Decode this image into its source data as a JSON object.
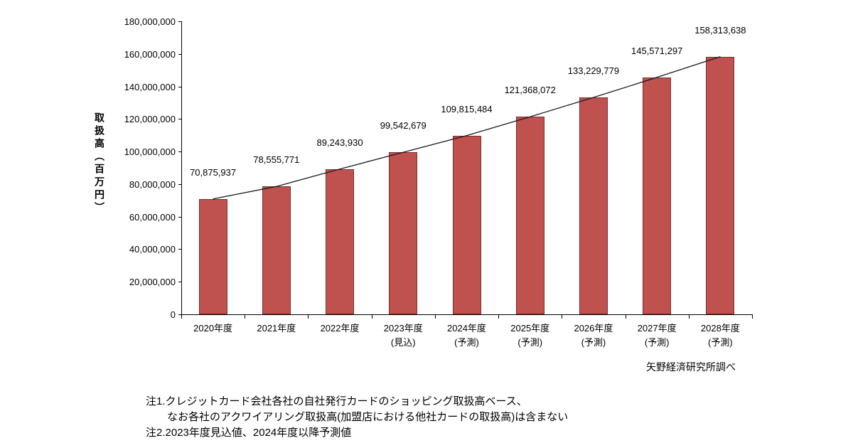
{
  "chart_data": {
    "type": "bar",
    "title": "",
    "ylabel": "取扱高（百万円）",
    "xlabel": "",
    "categories": [
      "2020年度",
      "2021年度",
      "2022年度",
      "2023年度",
      "2024年度",
      "2025年度",
      "2026年度",
      "2027年度",
      "2028年度"
    ],
    "category_sublabels": [
      "",
      "",
      "",
      "(見込)",
      "(予測)",
      "(予測)",
      "(予測)",
      "(予測)",
      "(予測)"
    ],
    "values": [
      70875937,
      78555771,
      89243930,
      99542679,
      109815484,
      121368072,
      133229779,
      145571297,
      158313638
    ],
    "value_labels": [
      "70,875,937",
      "78,555,771",
      "89,243,930",
      "99,542,679",
      "109,815,484",
      "121,368,072",
      "133,229,779",
      "145,571,297",
      "158,313,638"
    ],
    "ylim": [
      0,
      180000000
    ],
    "ytick_step": 20000000,
    "ytick_labels": [
      "0",
      "20,000,000",
      "40,000,000",
      "60,000,000",
      "80,000,000",
      "100,000,000",
      "120,000,000",
      "140,000,000",
      "160,000,000",
      "180,000,000"
    ],
    "grid": false,
    "legend": "none",
    "bar_color": "#bf514e",
    "bar_border_color": "#7a2f2d",
    "overlay_line_color": "#1a1a1a",
    "source": "矢野経済研究所調べ",
    "notes": [
      "注1.クレジットカード会社各社の自社発行カードのショッピング取扱高ベース、",
      "　　なお各社のアクワイアリング取扱高(加盟店における他社カードの取扱高)は含まない",
      "注2.2023年度見込値、2024年度以降予測値"
    ]
  }
}
